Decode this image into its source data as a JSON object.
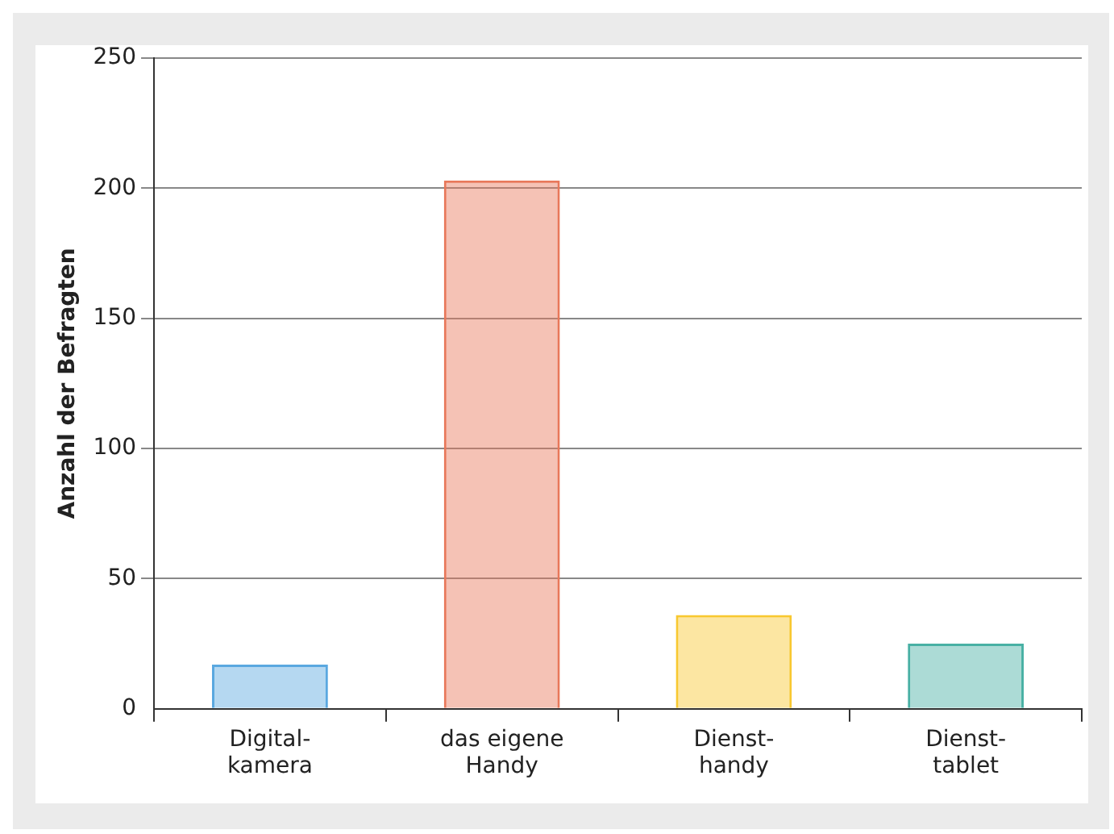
{
  "chart_data": {
    "type": "bar",
    "ylabel": "Anzahl der Befragten",
    "categories": [
      "Digital-\nkamera",
      "das eigene\nHandy",
      "Dienst-\nhandy",
      "Dienst-\ntablet"
    ],
    "values": [
      17,
      203,
      36,
      25
    ],
    "colors": [
      "#5aa8e0",
      "#e8785a",
      "#f8c830",
      "#48b0a4"
    ],
    "ylim": [
      0,
      250
    ],
    "yticks": [
      0,
      50,
      100,
      150,
      200,
      250
    ],
    "grid": "y",
    "legend": false
  }
}
